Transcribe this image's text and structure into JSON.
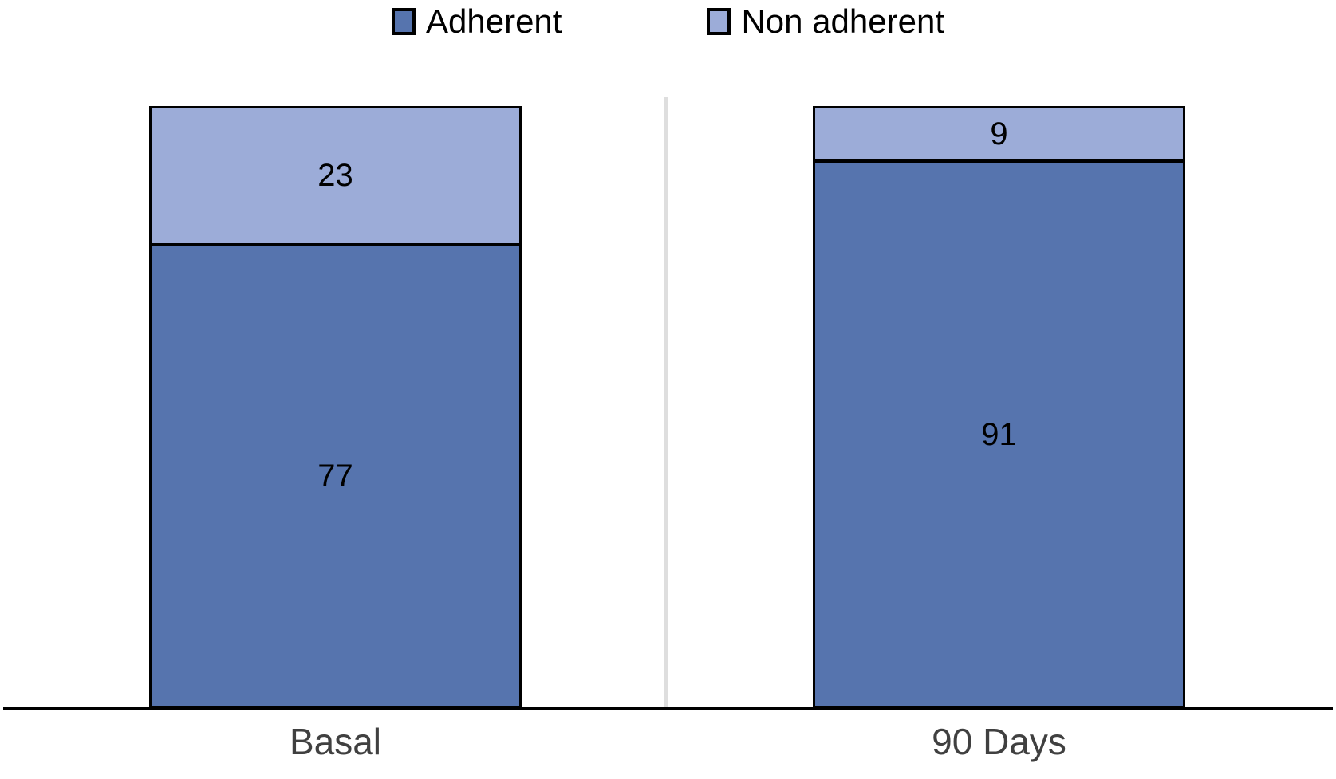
{
  "chart_data": {
    "type": "bar",
    "subtype": "stacked",
    "orientation": "vertical",
    "categories": [
      "Basal",
      "90 Days"
    ],
    "series": [
      {
        "name": "Adherent",
        "values": [
          77,
          91
        ],
        "color": "#5674AE"
      },
      {
        "name": "Non adherent",
        "values": [
          23,
          9
        ],
        "color": "#9CACD8"
      }
    ],
    "stack_total": 100,
    "value_labels_visible": true,
    "legend_position": "top",
    "ylim": [
      0,
      100
    ],
    "y_axis_visible": false,
    "x_axis_line_visible": true,
    "gridlines": false
  },
  "legend": {
    "items": [
      {
        "label": "Adherent",
        "color": "#5674AE"
      },
      {
        "label": "Non adherent",
        "color": "#9CACD8"
      }
    ]
  },
  "colors": {
    "background": "#FFFFFF",
    "segment_border": "#000000",
    "axis_line": "#000000",
    "panel_divider": "#DEDEDE",
    "category_label_text": "#404040",
    "data_label_text": "#000000",
    "legend_text": "#000000"
  }
}
